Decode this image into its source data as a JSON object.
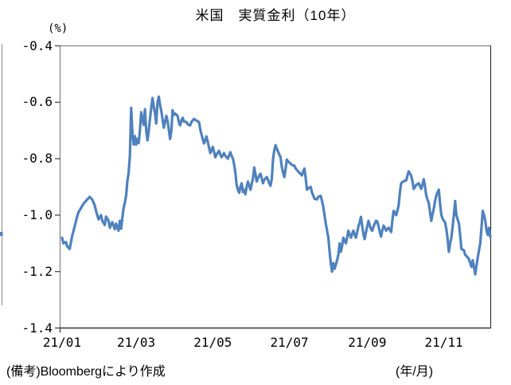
{
  "chart_data": {
    "type": "line",
    "title": "米国　実質金利（10年）",
    "y_unit_label": "(%)",
    "x_unit_label": "(年/月)",
    "note": "(備考)Bloombergにより作成",
    "ylim": [
      -1.4,
      -0.4
    ],
    "grid": false,
    "legend": "none",
    "line_color": "#4F81BD",
    "frame_color": "#808080",
    "axis_color": "#3a3a3a",
    "y_ticks": [
      "-0.4",
      "-0.6",
      "-0.8",
      "-1.0",
      "-1.2",
      "-1.4"
    ],
    "x_ticks": [
      {
        "label": "21/01",
        "day": 0
      },
      {
        "label": "21/03",
        "day": 59
      },
      {
        "label": "21/05",
        "day": 120
      },
      {
        "label": "21/07",
        "day": 181
      },
      {
        "label": "21/09",
        "day": 243
      },
      {
        "label": "21/11",
        "day": 304
      }
    ],
    "x_domain_days": [
      0,
      341
    ],
    "points": [
      [
        0,
        -1.08
      ],
      [
        1,
        -1.1
      ],
      [
        3,
        -1.095
      ],
      [
        4,
        -1.11
      ],
      [
        6,
        -1.12
      ],
      [
        8,
        -1.075
      ],
      [
        10,
        -1.04
      ],
      [
        12,
        -1.005
      ],
      [
        13,
        -0.99
      ],
      [
        15,
        -0.975
      ],
      [
        17,
        -0.96
      ],
      [
        19,
        -0.95
      ],
      [
        21,
        -0.94
      ],
      [
        22,
        -0.935
      ],
      [
        24,
        -0.945
      ],
      [
        26,
        -0.965
      ],
      [
        27,
        -0.985
      ],
      [
        29,
        -1.015
      ],
      [
        31,
        -1.0
      ],
      [
        32,
        -1.02
      ],
      [
        34,
        -1.035
      ],
      [
        35,
        -1.005
      ],
      [
        37,
        -1.02
      ],
      [
        38,
        -1.045
      ],
      [
        40,
        -1.025
      ],
      [
        42,
        -1.05
      ],
      [
        43,
        -1.03
      ],
      [
        45,
        -1.055
      ],
      [
        46,
        -1.02
      ],
      [
        47,
        -1.048
      ],
      [
        48,
        -1.01
      ],
      [
        49,
        -0.975
      ],
      [
        50,
        -0.955
      ],
      [
        51,
        -0.93
      ],
      [
        52,
        -0.88
      ],
      [
        53,
        -0.85
      ],
      [
        54,
        -0.79
      ],
      [
        55,
        -0.62
      ],
      [
        56,
        -0.71
      ],
      [
        57,
        -0.75
      ],
      [
        58,
        -0.72
      ],
      [
        59,
        -0.75
      ],
      [
        60,
        -0.73
      ],
      [
        61,
        -0.745
      ],
      [
        62,
        -0.7
      ],
      [
        63,
        -0.635
      ],
      [
        64,
        -0.66
      ],
      [
        65,
        -0.68
      ],
      [
        66,
        -0.625
      ],
      [
        67,
        -0.7
      ],
      [
        68,
        -0.735
      ],
      [
        69,
        -0.7
      ],
      [
        70,
        -0.66
      ],
      [
        71,
        -0.62
      ],
      [
        72,
        -0.585
      ],
      [
        73,
        -0.615
      ],
      [
        74,
        -0.64
      ],
      [
        75,
        -0.675
      ],
      [
        76,
        -0.6
      ],
      [
        77,
        -0.58
      ],
      [
        78,
        -0.61
      ],
      [
        79,
        -0.63
      ],
      [
        80,
        -0.66
      ],
      [
        81,
        -0.69
      ],
      [
        82,
        -0.67
      ],
      [
        83,
        -0.648
      ],
      [
        84,
        -0.665
      ],
      [
        86,
        -0.73
      ],
      [
        87,
        -0.7
      ],
      [
        88,
        -0.628
      ],
      [
        89,
        -0.645
      ],
      [
        90,
        -0.64
      ],
      [
        92,
        -0.648
      ],
      [
        93,
        -0.67
      ],
      [
        94,
        -0.682
      ],
      [
        95,
        -0.665
      ],
      [
        96,
        -0.655
      ],
      [
        97,
        -0.668
      ],
      [
        99,
        -0.67
      ],
      [
        100,
        -0.678
      ],
      [
        102,
        -0.682
      ],
      [
        103,
        -0.67
      ],
      [
        105,
        -0.659
      ],
      [
        107,
        -0.665
      ],
      [
        109,
        -0.67
      ],
      [
        110,
        -0.695
      ],
      [
        111,
        -0.713
      ],
      [
        112,
        -0.73
      ],
      [
        113,
        -0.746
      ],
      [
        114,
        -0.735
      ],
      [
        115,
        -0.721
      ],
      [
        116,
        -0.74
      ],
      [
        118,
        -0.78
      ],
      [
        119,
        -0.77
      ],
      [
        120,
        -0.758
      ],
      [
        121,
        -0.775
      ],
      [
        122,
        -0.795
      ],
      [
        123,
        -0.785
      ],
      [
        125,
        -0.772
      ],
      [
        126,
        -0.785
      ],
      [
        127,
        -0.795
      ],
      [
        128,
        -0.788
      ],
      [
        129,
        -0.78
      ],
      [
        130,
        -0.79
      ],
      [
        132,
        -0.8
      ],
      [
        133,
        -0.788
      ],
      [
        134,
        -0.777
      ],
      [
        135,
        -0.79
      ],
      [
        136,
        -0.8
      ],
      [
        137,
        -0.82
      ],
      [
        138,
        -0.848
      ],
      [
        139,
        -0.893
      ],
      [
        140,
        -0.91
      ],
      [
        141,
        -0.921
      ],
      [
        142,
        -0.9
      ],
      [
        143,
        -0.887
      ],
      [
        144,
        -0.918
      ],
      [
        145,
        -0.91
      ],
      [
        146,
        -0.926
      ],
      [
        147,
        -0.9
      ],
      [
        148,
        -0.881
      ],
      [
        149,
        -0.895
      ],
      [
        150,
        -0.91
      ],
      [
        151,
        -0.89
      ],
      [
        152,
        -0.87
      ],
      [
        153,
        -0.831
      ],
      [
        154,
        -0.855
      ],
      [
        155,
        -0.881
      ],
      [
        156,
        -0.87
      ],
      [
        157,
        -0.86
      ],
      [
        158,
        -0.853
      ],
      [
        159,
        -0.87
      ],
      [
        160,
        -0.887
      ],
      [
        161,
        -0.875
      ],
      [
        163,
        -0.865
      ],
      [
        164,
        -0.875
      ],
      [
        165,
        -0.887
      ],
      [
        166,
        -0.896
      ],
      [
        167,
        -0.87
      ],
      [
        168,
        -0.8
      ],
      [
        169,
        -0.77
      ],
      [
        170,
        -0.752
      ],
      [
        171,
        -0.765
      ],
      [
        172,
        -0.775
      ],
      [
        173,
        -0.785
      ],
      [
        174,
        -0.795
      ],
      [
        175,
        -0.83
      ],
      [
        176,
        -0.85
      ],
      [
        177,
        -0.865
      ],
      [
        178,
        -0.835
      ],
      [
        179,
        -0.803
      ],
      [
        180,
        -0.81
      ],
      [
        182,
        -0.817
      ],
      [
        183,
        -0.822
      ],
      [
        185,
        -0.825
      ],
      [
        186,
        -0.835
      ],
      [
        188,
        -0.845
      ],
      [
        189,
        -0.85
      ],
      [
        191,
        -0.859
      ],
      [
        192,
        -0.845
      ],
      [
        193,
        -0.835
      ],
      [
        194,
        -0.87
      ],
      [
        195,
        -0.91
      ],
      [
        196,
        -0.905
      ],
      [
        198,
        -0.9
      ],
      [
        199,
        -0.92
      ],
      [
        200,
        -0.93
      ],
      [
        201,
        -0.942
      ],
      [
        203,
        -0.944
      ],
      [
        204,
        -0.935
      ],
      [
        206,
        -0.932
      ],
      [
        207,
        -0.95
      ],
      [
        208,
        -0.972
      ],
      [
        209,
        -1.0
      ],
      [
        210,
        -1.03
      ],
      [
        211,
        -1.055
      ],
      [
        212,
        -1.08
      ],
      [
        213,
        -1.13
      ],
      [
        214,
        -1.17
      ],
      [
        215,
        -1.2
      ],
      [
        216,
        -1.17
      ],
      [
        217,
        -1.19
      ],
      [
        218,
        -1.175
      ],
      [
        219,
        -1.16
      ],
      [
        220,
        -1.14
      ],
      [
        221,
        -1.1
      ],
      [
        222,
        -1.13
      ],
      [
        223,
        -1.11
      ],
      [
        224,
        -1.08
      ],
      [
        225,
        -1.09
      ],
      [
        226,
        -1.1
      ],
      [
        227,
        -1.08
      ],
      [
        228,
        -1.055
      ],
      [
        229,
        -1.07
      ],
      [
        230,
        -1.08
      ],
      [
        231,
        -1.065
      ],
      [
        232,
        -1.055
      ],
      [
        233,
        -1.07
      ],
      [
        234,
        -1.08
      ],
      [
        235,
        -1.06
      ],
      [
        236,
        -1.04
      ],
      [
        237,
        -1.025
      ],
      [
        238,
        -1.006
      ],
      [
        239,
        -1.04
      ],
      [
        240,
        -1.07
      ],
      [
        241,
        -1.085
      ],
      [
        242,
        -1.06
      ],
      [
        243,
        -1.04
      ],
      [
        244,
        -1.02
      ],
      [
        245,
        -1.035
      ],
      [
        246,
        -1.05
      ],
      [
        247,
        -1.055
      ],
      [
        248,
        -1.04
      ],
      [
        249,
        -1.03
      ],
      [
        250,
        -1.02
      ],
      [
        251,
        -1.022
      ],
      [
        252,
        -1.04
      ],
      [
        253,
        -1.06
      ],
      [
        254,
        -1.076
      ],
      [
        255,
        -1.055
      ],
      [
        256,
        -1.037
      ],
      [
        257,
        -1.045
      ],
      [
        258,
        -1.055
      ],
      [
        259,
        -1.05
      ],
      [
        260,
        -1.045
      ],
      [
        261,
        -1.052
      ],
      [
        262,
        -1.06
      ],
      [
        263,
        -1.02
      ],
      [
        264,
        -0.985
      ],
      [
        265,
        -0.99
      ],
      [
        266,
        -1.0
      ],
      [
        267,
        -0.985
      ],
      [
        268,
        -0.966
      ],
      [
        269,
        -0.92
      ],
      [
        270,
        -0.887
      ],
      [
        271,
        -0.883
      ],
      [
        272,
        -0.88
      ],
      [
        274,
        -0.877
      ],
      [
        275,
        -0.86
      ],
      [
        276,
        -0.845
      ],
      [
        277,
        -0.852
      ],
      [
        278,
        -0.86
      ],
      [
        279,
        -0.88
      ],
      [
        280,
        -0.907
      ],
      [
        281,
        -0.9
      ],
      [
        282,
        -0.893
      ],
      [
        283,
        -0.89
      ],
      [
        284,
        -0.887
      ],
      [
        285,
        -0.897
      ],
      [
        286,
        -0.907
      ],
      [
        287,
        -0.89
      ],
      [
        288,
        -0.873
      ],
      [
        289,
        -0.9
      ],
      [
        290,
        -0.93
      ],
      [
        291,
        -0.945
      ],
      [
        292,
        -0.957
      ],
      [
        293,
        -0.99
      ],
      [
        294,
        -1.02
      ],
      [
        295,
        -0.998
      ],
      [
        296,
        -0.977
      ],
      [
        297,
        -0.95
      ],
      [
        298,
        -0.93
      ],
      [
        299,
        -0.92
      ],
      [
        300,
        -0.91
      ],
      [
        301,
        -0.96
      ],
      [
        302,
        -1.0
      ],
      [
        303,
        -1.012
      ],
      [
        304,
        -1.02
      ],
      [
        305,
        -1.025
      ],
      [
        306,
        -1.05
      ],
      [
        307,
        -1.085
      ],
      [
        308,
        -1.13
      ],
      [
        309,
        -1.1
      ],
      [
        310,
        -1.08
      ],
      [
        311,
        -1.04
      ],
      [
        312,
        -1.0
      ],
      [
        313,
        -0.95
      ],
      [
        314,
        -1.0
      ],
      [
        315,
        -1.015
      ],
      [
        316,
        -1.03
      ],
      [
        317,
        -1.07
      ],
      [
        318,
        -1.12
      ],
      [
        319,
        -1.122
      ],
      [
        320,
        -1.125
      ],
      [
        321,
        -1.14
      ],
      [
        322,
        -1.145
      ],
      [
        323,
        -1.15
      ],
      [
        324,
        -1.156
      ],
      [
        325,
        -1.17
      ],
      [
        326,
        -1.183
      ],
      [
        327,
        -1.16
      ],
      [
        328,
        -1.185
      ],
      [
        329,
        -1.21
      ],
      [
        330,
        -1.18
      ],
      [
        331,
        -1.15
      ],
      [
        332,
        -1.125
      ],
      [
        333,
        -1.1
      ],
      [
        334,
        -1.04
      ],
      [
        335,
        -0.985
      ],
      [
        336,
        -1.0
      ],
      [
        337,
        -1.02
      ],
      [
        338,
        -1.055
      ],
      [
        339,
        -1.07
      ],
      [
        340,
        -1.045
      ],
      [
        341,
        -1.077
      ]
    ]
  }
}
